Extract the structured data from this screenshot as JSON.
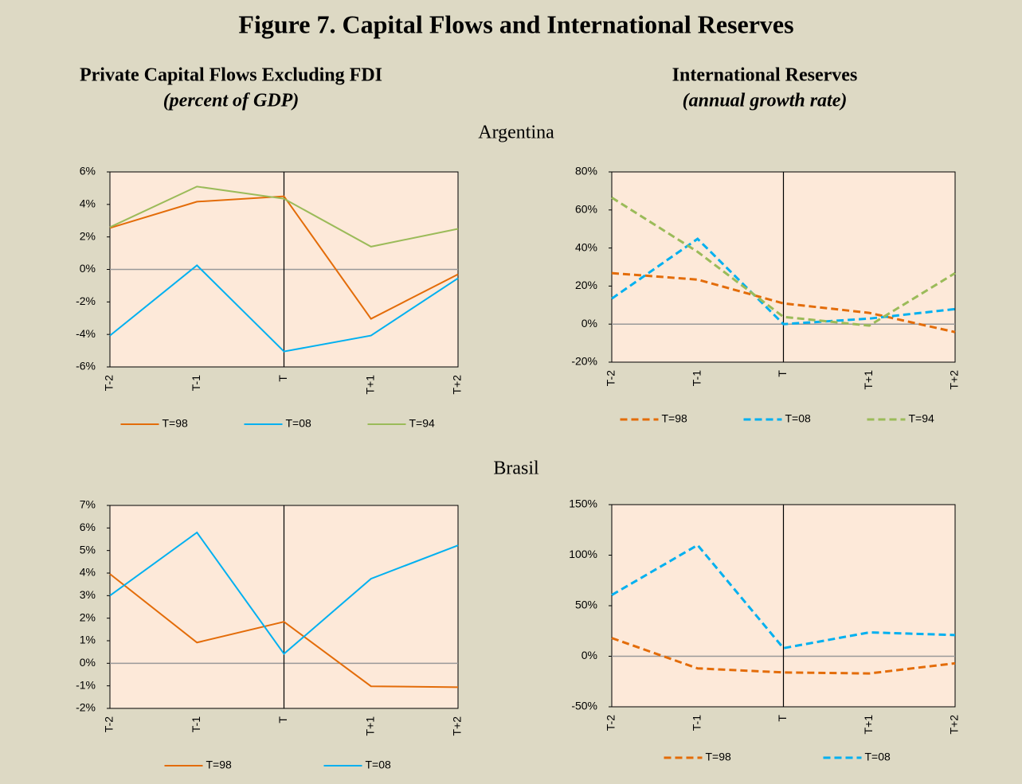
{
  "figure_title": "Figure 7.   Capital Flows and International Reserves",
  "column_titles": [
    {
      "title": "Private Capital Flows Excluding FDI",
      "subtitle": "(percent of GDP)"
    },
    {
      "title": "International Reserves",
      "subtitle": "(annual growth rate)"
    }
  ],
  "row_labels": [
    "Argentina",
    "Brasil"
  ],
  "chart_data": [
    {
      "type": "line",
      "dashed": false,
      "categories": [
        "T-2",
        "T-1",
        "T",
        "T+1",
        "T+2"
      ],
      "series": [
        {
          "name": "T=98",
          "color": "#e36c09",
          "values": [
            2.55,
            4.17,
            4.5,
            -3.04,
            -0.3
          ]
        },
        {
          "name": "T=08",
          "color": "#00b0f0",
          "values": [
            -4.07,
            0.25,
            -5.05,
            -4.07,
            -0.54
          ]
        },
        {
          "name": "T=94",
          "color": "#9bbb59",
          "values": [
            2.6,
            5.1,
            4.35,
            1.4,
            2.5
          ]
        }
      ],
      "ylim": [
        -6,
        6
      ],
      "yticks": [
        {
          "value": -6,
          "label": "-6%"
        },
        {
          "value": -4,
          "label": "-4%"
        },
        {
          "value": -2,
          "label": "-2%"
        },
        {
          "value": 0,
          "label": "0%"
        },
        {
          "value": 2,
          "label": "2%"
        },
        {
          "value": 4,
          "label": "4%"
        },
        {
          "value": 6,
          "label": "6%"
        }
      ]
    },
    {
      "type": "line",
      "dashed": true,
      "categories": [
        "T-2",
        "T-1",
        "T",
        "T+1",
        "T+2"
      ],
      "series": [
        {
          "name": "T=98",
          "color": "#e36c09",
          "values": [
            26.8,
            23.4,
            10.9,
            5.9,
            -4.2
          ]
        },
        {
          "name": "T=08",
          "color": "#00b0f0",
          "values": [
            13.4,
            44.8,
            0,
            2.9,
            7.9
          ]
        },
        {
          "name": "T=94",
          "color": "#9bbb59",
          "values": [
            66.5,
            38,
            3.8,
            -0.8,
            26.8
          ]
        }
      ],
      "ylim": [
        -20,
        80
      ],
      "yticks": [
        {
          "value": -20,
          "label": "-20%"
        },
        {
          "value": 0,
          "label": "0%"
        },
        {
          "value": 20,
          "label": "20%"
        },
        {
          "value": 40,
          "label": "40%"
        },
        {
          "value": 60,
          "label": "60%"
        },
        {
          "value": 80,
          "label": "80%"
        }
      ]
    },
    {
      "type": "line",
      "dashed": false,
      "categories": [
        "T-2",
        "T-1",
        "T",
        "T+1",
        "T+2"
      ],
      "series": [
        {
          "name": "T=98",
          "color": "#e36c09",
          "values": [
            3.96,
            0.92,
            1.84,
            -1.02,
            -1.06
          ]
        },
        {
          "name": "T=08",
          "color": "#00b0f0",
          "values": [
            3.0,
            5.8,
            0.42,
            3.75,
            5.23
          ]
        }
      ],
      "ylim": [
        -2,
        7
      ],
      "yticks": [
        {
          "value": -2,
          "label": "-2%"
        },
        {
          "value": -1,
          "label": "-1%"
        },
        {
          "value": 0,
          "label": "0%"
        },
        {
          "value": 1,
          "label": "1%"
        },
        {
          "value": 2,
          "label": "2%"
        },
        {
          "value": 3,
          "label": "3%"
        },
        {
          "value": 4,
          "label": "4%"
        },
        {
          "value": 5,
          "label": "5%"
        },
        {
          "value": 6,
          "label": "6%"
        },
        {
          "value": 7,
          "label": "7%"
        }
      ]
    },
    {
      "type": "line",
      "dashed": true,
      "categories": [
        "T-2",
        "T-1",
        "T",
        "T+1",
        "T+2"
      ],
      "series": [
        {
          "name": "T=98",
          "color": "#e36c09",
          "values": [
            18,
            -12,
            -16,
            -17,
            -7
          ]
        },
        {
          "name": "T=08",
          "color": "#00b0f0",
          "values": [
            60.6,
            110,
            8,
            23.6,
            21
          ]
        }
      ],
      "ylim": [
        -50,
        150
      ],
      "yticks": [
        {
          "value": -50,
          "label": "-50%"
        },
        {
          "value": 0,
          "label": "0%"
        },
        {
          "value": 50,
          "label": "50%"
        },
        {
          "value": 100,
          "label": "100%"
        },
        {
          "value": 150,
          "label": "150%"
        }
      ]
    }
  ]
}
